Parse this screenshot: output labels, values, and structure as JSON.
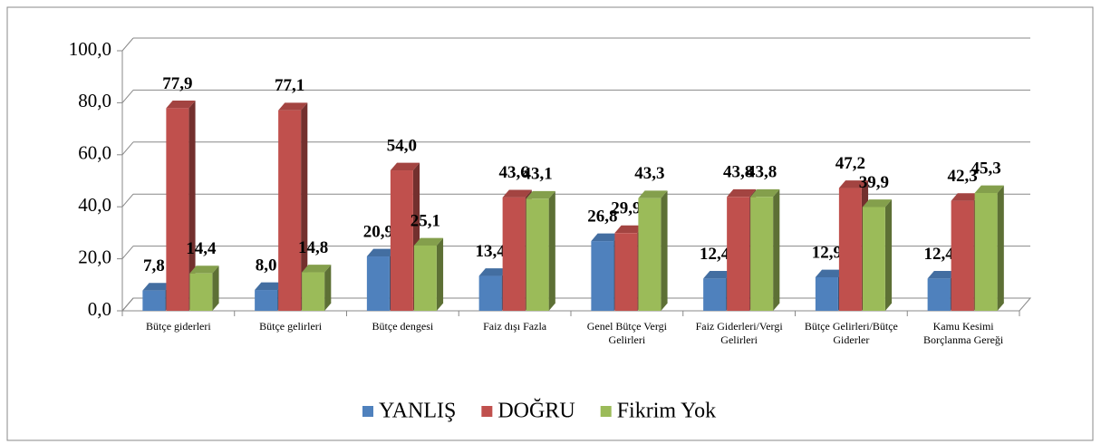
{
  "chart_data": {
    "type": "bar3d",
    "categories": [
      "Bütçe giderleri",
      "Bütçe gelirleri",
      "Bütçe dengesi",
      "Faiz dışı Fazla",
      "Genel Bütçe Vergi Gelirleri",
      "Faiz Giderleri/Vergi Gelirleri",
      "Bütçe Gelirleri/Bütçe Giderler",
      "Kamu Kesimi Borçlanma Gereği"
    ],
    "series": [
      {
        "name": "YANLIŞ",
        "color": "#4f81bd",
        "values": [
          7.8,
          8.0,
          20.9,
          13.4,
          26.8,
          12.4,
          12.9,
          12.4
        ],
        "value_labels": [
          "7,8",
          "8,0",
          "20,9",
          "13,4",
          "26,8",
          "12,4",
          "12,9",
          "12,4"
        ]
      },
      {
        "name": "DOĞRU",
        "color": "#c0504d",
        "values": [
          77.9,
          77.1,
          54.0,
          43.6,
          29.9,
          43.8,
          47.2,
          42.3
        ],
        "value_labels": [
          "77,9",
          "77,1",
          "54,0",
          "43,6",
          "29,9",
          "43,8",
          "47,2",
          "42,3"
        ]
      },
      {
        "name": "Fikrim Yok",
        "color": "#9bbb59",
        "values": [
          14.4,
          14.8,
          25.1,
          43.1,
          43.3,
          43.8,
          39.9,
          45.3
        ],
        "value_labels": [
          "14,4",
          "14,8",
          "25,1",
          "43,1",
          "43,3",
          "43,8",
          "39,9",
          "45,3"
        ]
      }
    ],
    "ylim": [
      0,
      100
    ],
    "yticks": [
      {
        "value": 0,
        "label": "0,0"
      },
      {
        "value": 20,
        "label": "20,0"
      },
      {
        "value": 40,
        "label": "40,0"
      },
      {
        "value": 60,
        "label": "60,0"
      },
      {
        "value": 80,
        "label": "80,0"
      },
      {
        "value": 100,
        "label": "100,0"
      }
    ],
    "grid": true,
    "legend": "bottom"
  }
}
